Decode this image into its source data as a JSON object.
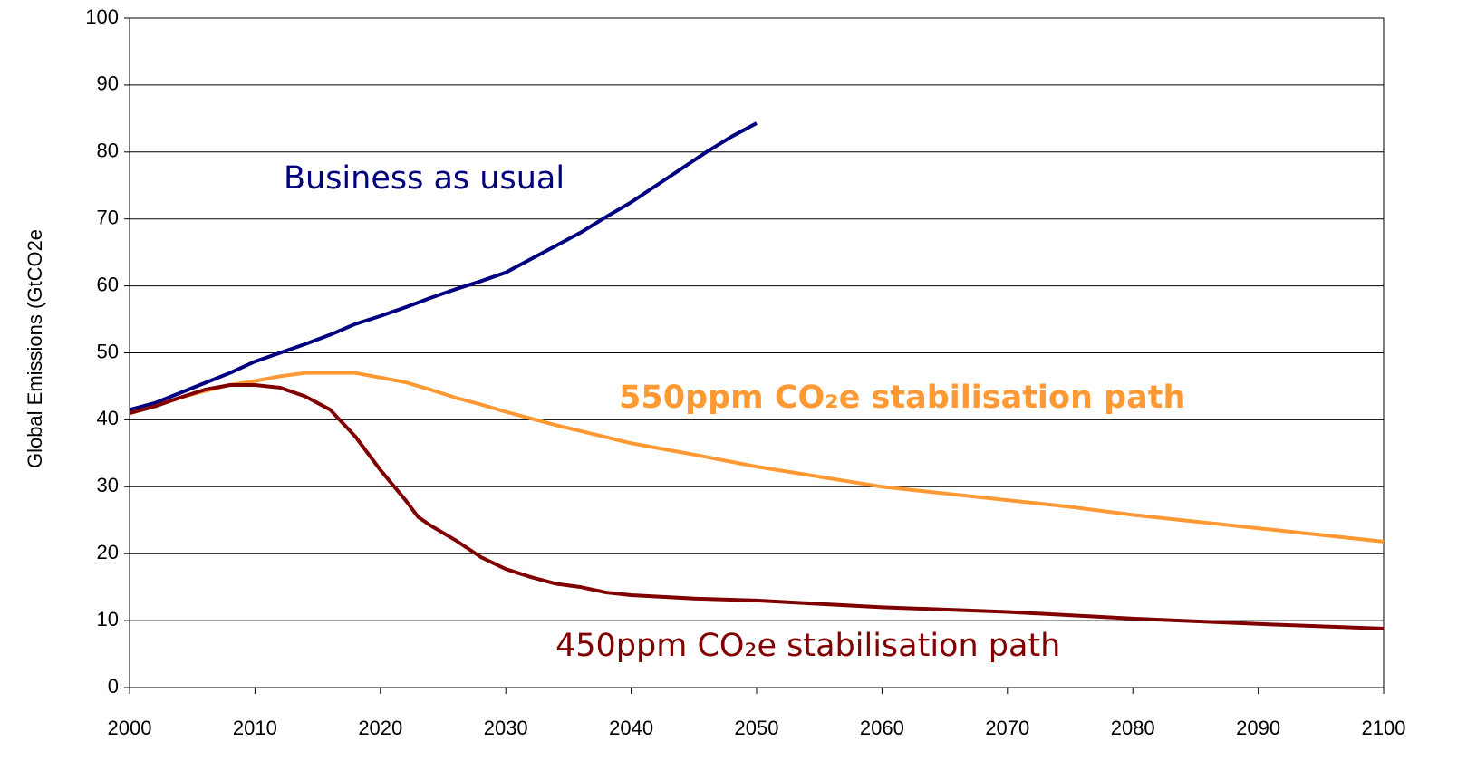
{
  "chart_data": {
    "type": "line",
    "y_label": "Global Emissions (GtCO2e",
    "xlim": [
      2000,
      2100
    ],
    "xticks": [
      2000,
      2010,
      2020,
      2030,
      2040,
      2050,
      2060,
      2070,
      2080,
      2090,
      2100
    ],
    "ylim": [
      0,
      100
    ],
    "yticks": [
      0,
      10,
      20,
      30,
      40,
      50,
      60,
      70,
      80,
      90,
      100
    ],
    "grid": true,
    "series": [
      {
        "name": "Business as usual",
        "color": "#000080",
        "x": [
          2000,
          2002,
          2004,
          2006,
          2008,
          2010,
          2012,
          2014,
          2016,
          2018,
          2020,
          2022,
          2024,
          2026,
          2028,
          2030,
          2032,
          2034,
          2036,
          2038,
          2040,
          2042,
          2044,
          2046,
          2048,
          2050
        ],
        "values": [
          41.5,
          42.5,
          44,
          45.5,
          47,
          48.7,
          50,
          51.3,
          52.7,
          54.3,
          55.5,
          56.8,
          58.2,
          59.5,
          60.7,
          62,
          64,
          66,
          68,
          70.3,
          72.5,
          75,
          77.5,
          80,
          82.3,
          84.3
        ]
      },
      {
        "name": "550ppm CO₂e stabilisation path",
        "color": "#ff9933",
        "x": [
          2000,
          2002,
          2004,
          2006,
          2008,
          2010,
          2012,
          2014,
          2016,
          2018,
          2020,
          2022,
          2024,
          2026,
          2028,
          2030,
          2032,
          2034,
          2036,
          2038,
          2040,
          2045,
          2050,
          2055,
          2060,
          2065,
          2070,
          2075,
          2080,
          2085,
          2090,
          2095,
          2100
        ],
        "values": [
          41,
          42,
          43.3,
          44.3,
          45.2,
          45.8,
          46.5,
          47,
          47,
          47,
          46.3,
          45.6,
          44.5,
          43.3,
          42.3,
          41.2,
          40.2,
          39.2,
          38.3,
          37.4,
          36.5,
          34.8,
          33,
          31.5,
          30,
          29,
          28,
          27,
          25.8,
          24.8,
          23.8,
          22.8,
          21.8
        ]
      },
      {
        "name": "450ppm CO₂e stabilisation path",
        "color": "#800000",
        "x": [
          2000,
          2002,
          2004,
          2006,
          2008,
          2010,
          2012,
          2014,
          2016,
          2018,
          2020,
          2022,
          2023,
          2024,
          2026,
          2028,
          2030,
          2032,
          2034,
          2036,
          2038,
          2040,
          2045,
          2050,
          2060,
          2070,
          2080,
          2090,
          2100
        ],
        "values": [
          41,
          42,
          43.3,
          44.5,
          45.2,
          45.2,
          44.8,
          43.5,
          41.5,
          37.5,
          32.5,
          28,
          25.5,
          24.2,
          22,
          19.5,
          17.7,
          16.5,
          15.5,
          15,
          14.2,
          13.8,
          13.3,
          13,
          12,
          11.3,
          10.3,
          9.5,
          8.8
        ]
      }
    ]
  }
}
